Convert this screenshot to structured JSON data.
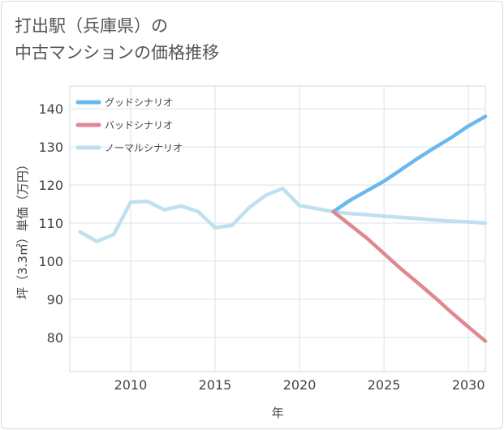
{
  "title_line1": "打出駅（兵庫県）の",
  "title_line2": "中古マンションの価格推移",
  "chart_data": {
    "type": "line",
    "title": "打出駅（兵庫県）の中古マンションの価格推移",
    "xlabel": "年",
    "ylabel": "坪（3.3㎡）単価（万円）",
    "xlim": [
      2006.4,
      2031
    ],
    "ylim": [
      71,
      146
    ],
    "xticks": [
      2010,
      2015,
      2020,
      2025,
      2030
    ],
    "yticks": [
      80,
      90,
      100,
      110,
      120,
      130,
      140
    ],
    "grid": true,
    "legend_position": "top-left",
    "series": [
      {
        "name": "グッドシナリオ",
        "color": "#6bb8ee",
        "x": [
          2022,
          2023,
          2024,
          2025,
          2026,
          2027,
          2028,
          2029,
          2030,
          2031
        ],
        "values": [
          113,
          116,
          118.5,
          121,
          124,
          127,
          129.8,
          132.5,
          135.5,
          138
        ]
      },
      {
        "name": "バッドシナリオ",
        "color": "#e08890",
        "x": [
          2022,
          2023,
          2024,
          2025,
          2026,
          2027,
          2028,
          2029,
          2030,
          2031
        ],
        "values": [
          113,
          109.5,
          106,
          102,
          98,
          94.3,
          90.5,
          86.5,
          82.7,
          79
        ]
      },
      {
        "name": "ノーマルシナリオ",
        "color": "#bfe0ee",
        "x": [
          2007,
          2008,
          2009,
          2010,
          2011,
          2012,
          2013,
          2014,
          2015,
          2016,
          2017,
          2018,
          2019,
          2020,
          2021,
          2022,
          2023,
          2024,
          2025,
          2026,
          2027,
          2028,
          2029,
          2030,
          2031
        ],
        "values": [
          107.7,
          105.2,
          107,
          115.5,
          115.7,
          113.5,
          114.5,
          113,
          108.8,
          109.4,
          114,
          117.3,
          119.1,
          114.6,
          113.8,
          113,
          112.5,
          112.2,
          111.8,
          111.5,
          111.2,
          110.8,
          110.5,
          110.3,
          110
        ]
      }
    ]
  }
}
